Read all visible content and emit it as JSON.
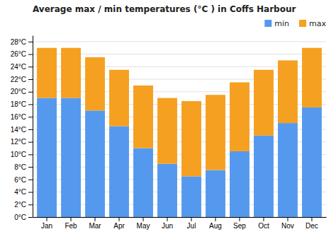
{
  "chart_data": {
    "type": "bar",
    "stacked": true,
    "title": "Average max / min temperatures (°C ) in Coffs Harbour",
    "categories": [
      "Jan",
      "Feb",
      "Mar",
      "Apr",
      "May",
      "Jun",
      "Jul",
      "Aug",
      "Sep",
      "Oct",
      "Nov",
      "Dec"
    ],
    "series": [
      {
        "name": "min",
        "color": "#5599ee",
        "values": [
          19,
          19,
          17,
          14.5,
          11,
          8.5,
          6.5,
          7.5,
          10.5,
          13,
          15,
          17.5
        ]
      },
      {
        "name": "max",
        "color": "#f5a020",
        "values": [
          8,
          8,
          8.5,
          9,
          10,
          10.5,
          12,
          12,
          11,
          10.5,
          10,
          9.5
        ]
      }
    ],
    "ylim": [
      0,
      29
    ],
    "yticks": [
      {
        "value": 0,
        "label": "0°C"
      },
      {
        "value": 2,
        "label": "2°C"
      },
      {
        "value": 4,
        "label": "4°C"
      },
      {
        "value": 6,
        "label": "6°C"
      },
      {
        "value": 8,
        "label": "8°C"
      },
      {
        "value": 10,
        "label": "10°C"
      },
      {
        "value": 12,
        "label": "12°C"
      },
      {
        "value": 14,
        "label": "14°C"
      },
      {
        "value": 16,
        "label": "16°C"
      },
      {
        "value": 18,
        "label": "18°C"
      },
      {
        "value": 20,
        "label": "20°C"
      },
      {
        "value": 22,
        "label": "22°C"
      },
      {
        "value": 24,
        "label": "24°C"
      },
      {
        "value": 26,
        "label": "26°C"
      },
      {
        "value": 28,
        "label": "28°C"
      }
    ],
    "grid": true,
    "legend": "upper right"
  }
}
